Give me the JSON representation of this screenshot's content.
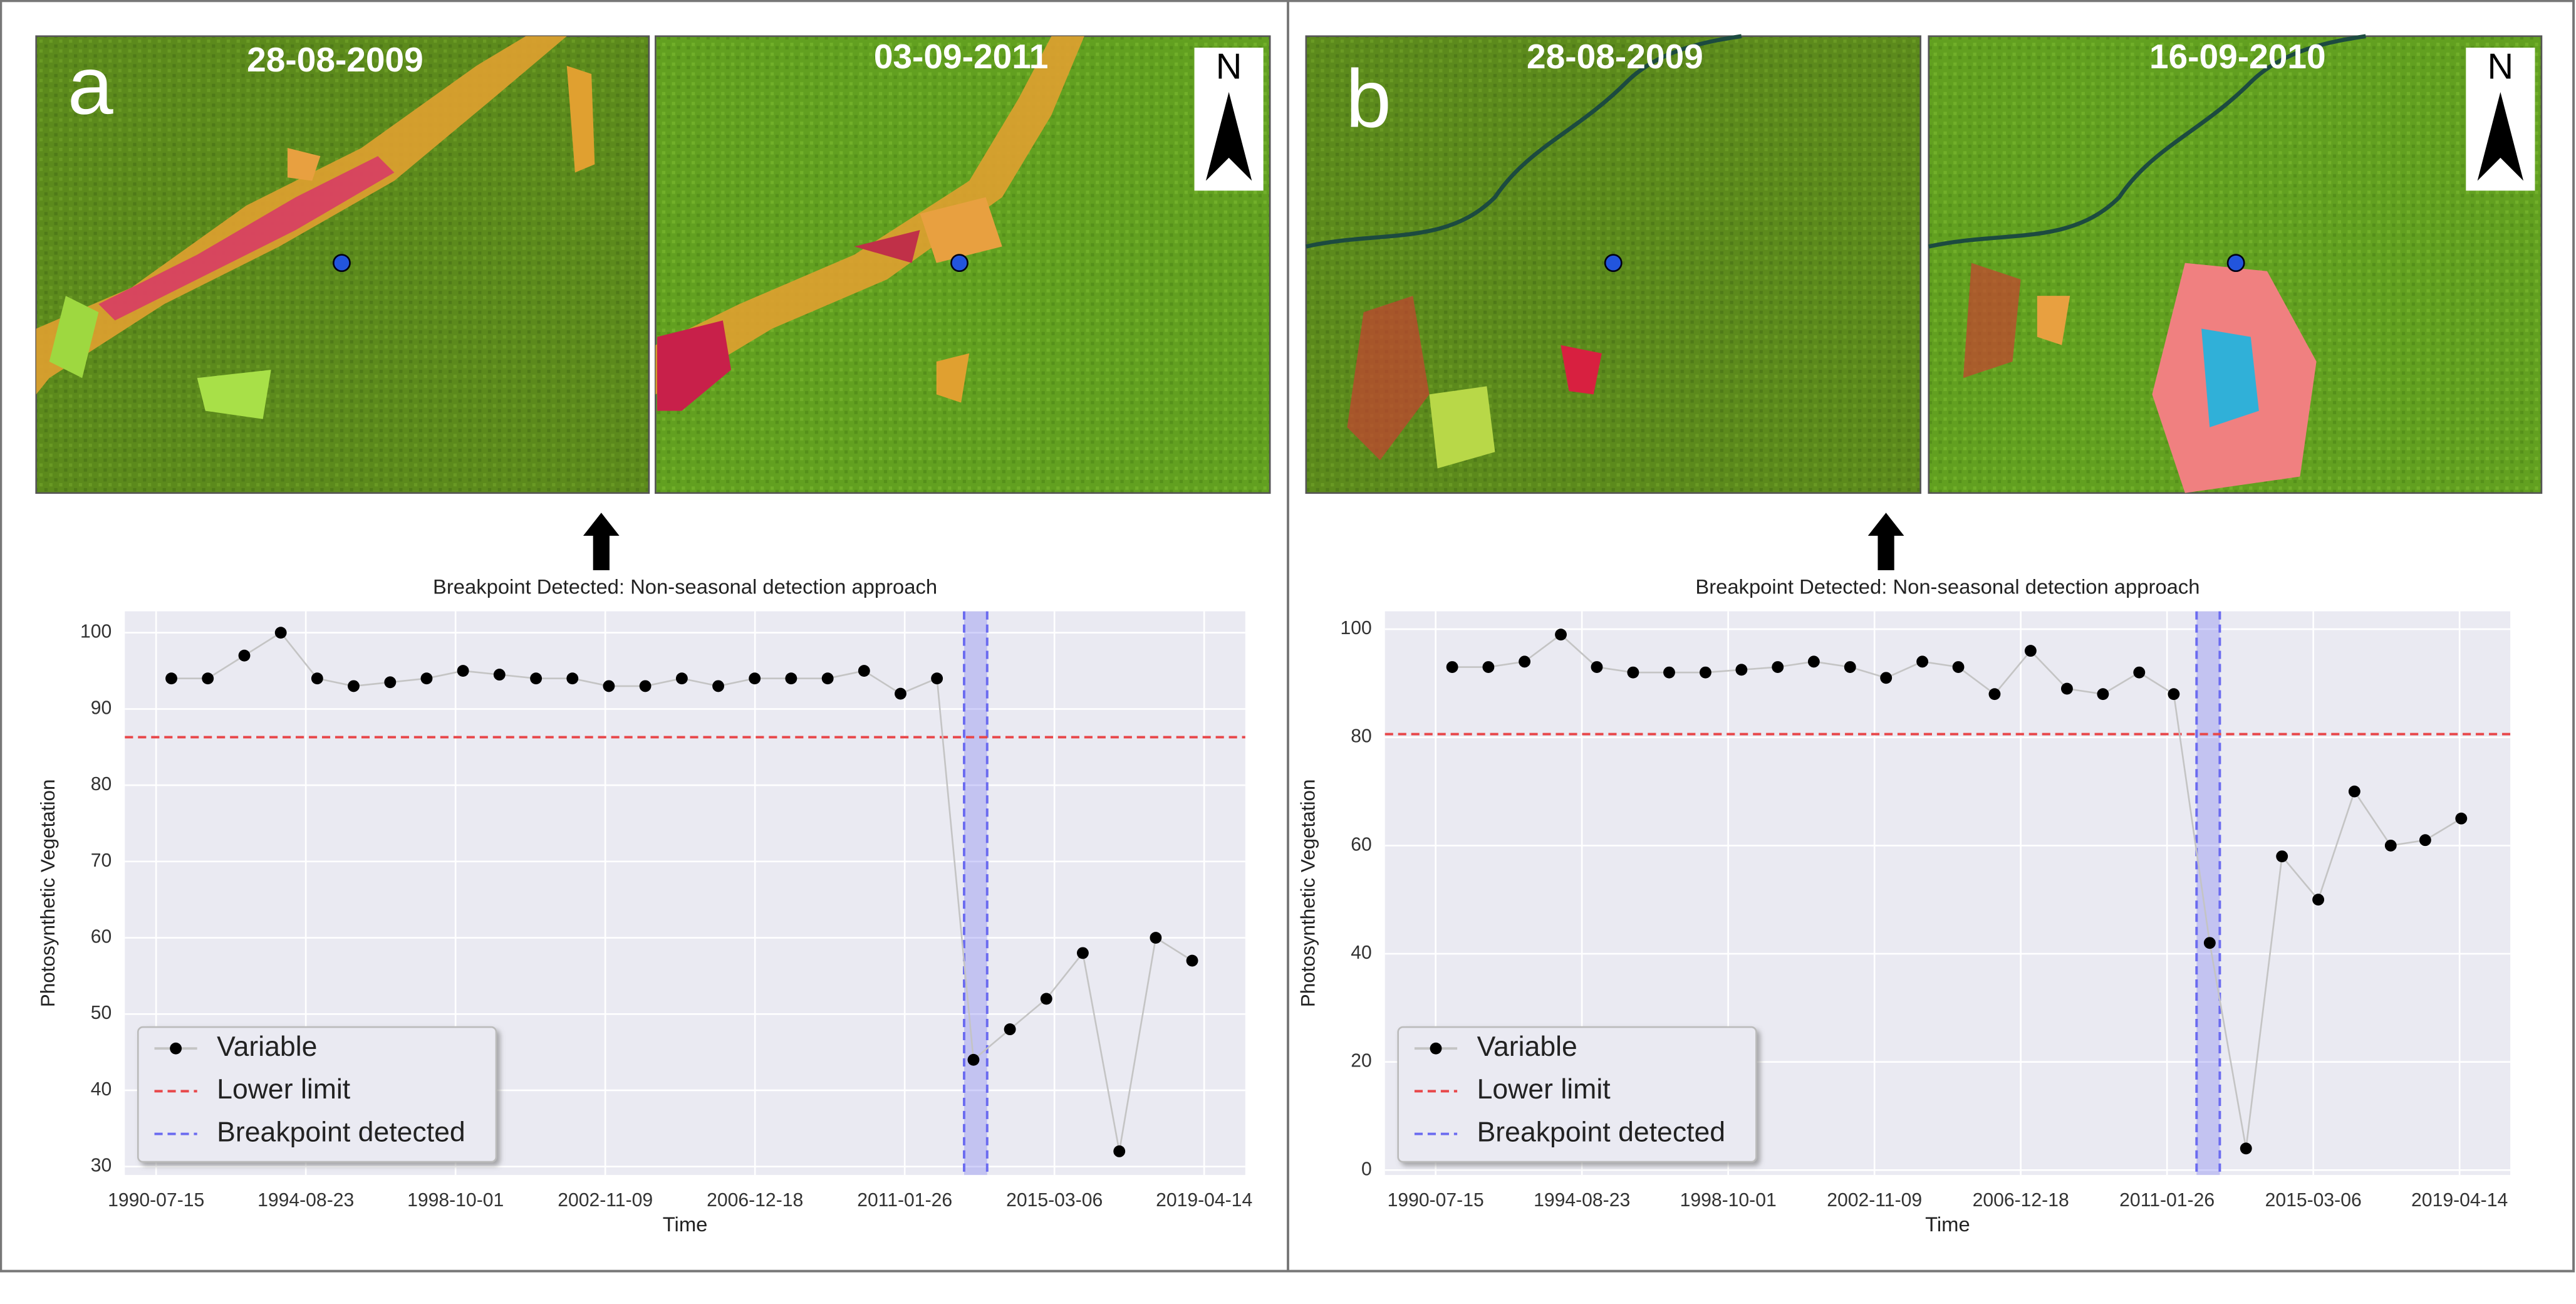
{
  "panels": [
    {
      "label": "a",
      "images": [
        "28-08-2009",
        "03-09-2011"
      ],
      "north": "N"
    },
    {
      "label": "b",
      "images": [
        "28-08-2009",
        "16-09-2010"
      ],
      "north": "N"
    }
  ],
  "chart_data": [
    {
      "type": "line",
      "title": "Breakpoint Detected: Non-seasonal detection approach",
      "x_label": "Time",
      "y_label": "Photosynthetic Vegetation",
      "x": [
        "1990-12-15",
        "1991-12-15",
        "1992-12-15",
        "1993-12-15",
        "1994-12-15",
        "1995-12-15",
        "1996-12-15",
        "1997-12-15",
        "1998-12-15",
        "1999-12-15",
        "2000-12-15",
        "2001-12-15",
        "2002-12-15",
        "2003-12-15",
        "2004-12-15",
        "2005-12-15",
        "2006-12-15",
        "2007-12-15",
        "2008-12-15",
        "2009-12-15",
        "2010-12-15",
        "2011-12-15",
        "2012-12-15",
        "2013-12-15",
        "2014-12-15",
        "2015-12-15",
        "2016-12-15",
        "2017-12-15",
        "2018-12-15"
      ],
      "series": [
        {
          "name": "Variable",
          "color": "#000000",
          "line_color": "#c4c4c4",
          "values": [
            94,
            94,
            97,
            100,
            94,
            93,
            93.5,
            94,
            95,
            94.5,
            94,
            94,
            93,
            93,
            94,
            93,
            94,
            94,
            94,
            95,
            92,
            94,
            44,
            48,
            52,
            58,
            32,
            60,
            57
          ]
        }
      ],
      "lower_limit": {
        "name": "Lower limit",
        "value": 86.3,
        "color": "#e8474a"
      },
      "breakpoint": {
        "name": "Breakpoint detected",
        "x": [
          "2012-09-12",
          "2013-05-01"
        ],
        "color": "#6b6bf0"
      },
      "xlim": [
        "1989-09-05",
        "2020-05-30"
      ],
      "xticks": [
        "1990-07-15",
        "1994-08-23",
        "1998-10-01",
        "2002-11-09",
        "2006-12-18",
        "2011-01-26",
        "2015-03-06",
        "2019-04-14"
      ],
      "ylim": [
        28.9,
        102.8
      ],
      "yticks": [
        30,
        40,
        50,
        60,
        70,
        80,
        90,
        100
      ],
      "grid": true,
      "legend": "lower left"
    },
    {
      "type": "line",
      "title": "Breakpoint Detected: Non-seasonal detection approach",
      "x_label": "Time",
      "y_label": "Photosynthetic Vegetation",
      "x": [
        "1991-01-01",
        "1992-01-07",
        "1993-01-12",
        "1994-01-19",
        "1995-01-23",
        "1996-01-30",
        "1997-02-03",
        "1998-02-10",
        "1999-02-14",
        "2000-02-21",
        "2001-02-25",
        "2002-03-04",
        "2003-03-08",
        "2004-03-14",
        "2005-03-18",
        "2006-03-25",
        "2007-03-29",
        "2008-04-05",
        "2009-04-09",
        "2010-04-16",
        "2011-04-05",
        "2012-04-08",
        "2013-04-15",
        "2014-04-19",
        "2015-04-26",
        "2016-05-01",
        "2017-05-08",
        "2018-04-27",
        "2019-05-01"
      ],
      "series": [
        {
          "name": "Variable",
          "color": "#000000",
          "line_color": "#c4c4c4",
          "values": [
            93,
            93,
            94,
            99,
            93,
            92,
            92,
            92,
            92.5,
            93,
            94,
            93,
            91,
            94,
            93,
            88,
            96,
            89,
            88,
            92,
            88,
            42,
            4,
            58,
            50,
            70,
            60,
            61,
            65
          ]
        }
      ],
      "lower_limit": {
        "name": "Lower limit",
        "value": 80.6,
        "color": "#e8474a"
      },
      "breakpoint": {
        "name": "Breakpoint detected",
        "x": [
          "2011-11-25",
          "2012-07-20"
        ],
        "color": "#6b6bf0"
      },
      "xlim": [
        "1989-02-10",
        "2020-09-15"
      ],
      "xticks": [
        "1990-07-15",
        "1994-08-23",
        "1998-10-01",
        "2002-11-09",
        "2006-12-18",
        "2011-01-26",
        "2015-03-06",
        "2019-04-14"
      ],
      "ylim": [
        -0.9,
        103.3
      ],
      "yticks": [
        0,
        20,
        40,
        60,
        80,
        100
      ],
      "grid": true,
      "legend": "lower left"
    }
  ]
}
